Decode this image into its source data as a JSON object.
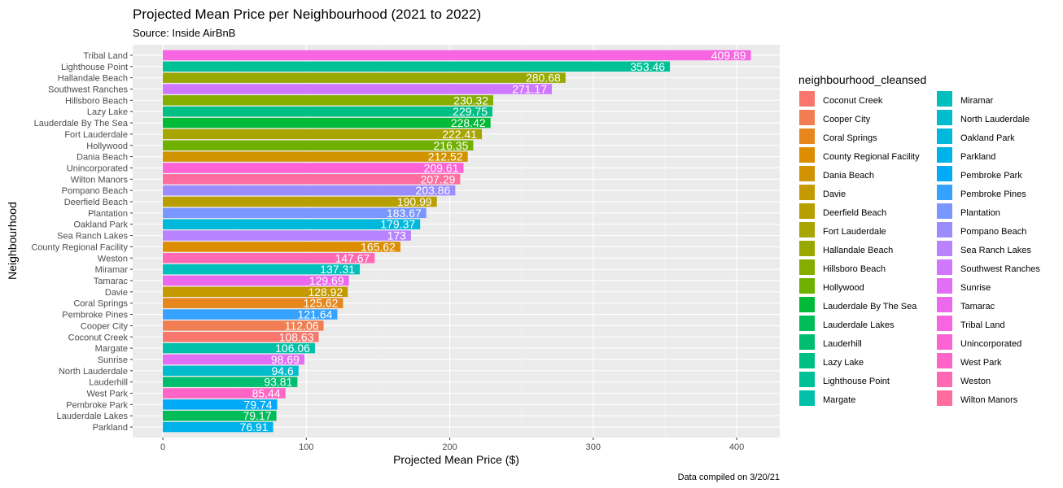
{
  "chart_data": {
    "type": "bar",
    "orientation": "horizontal",
    "title": "Projected Mean Price per Neighbourhood (2021 to 2022)",
    "subtitle": "Source: Inside AirBnB",
    "caption": "Data compiled on 3/20/21",
    "xlabel": "Projected Mean Price ($)",
    "ylabel": "Neighbourhood",
    "xlim": [
      -21,
      430
    ],
    "xticks": [
      0,
      100,
      200,
      300,
      400
    ],
    "grid": true,
    "legend_title": "neighbourhood_cleansed",
    "legend_position": "right",
    "bars": [
      {
        "name": "Tribal Land",
        "value": 409.89,
        "label": "409.89"
      },
      {
        "name": "Lighthouse Point",
        "value": 353.46,
        "label": "353.46"
      },
      {
        "name": "Hallandale Beach",
        "value": 280.68,
        "label": "280.68"
      },
      {
        "name": "Southwest Ranches",
        "value": 271.17,
        "label": "271.17"
      },
      {
        "name": "Hillsboro Beach",
        "value": 230.32,
        "label": "230.32"
      },
      {
        "name": "Lazy Lake",
        "value": 229.75,
        "label": "229.75"
      },
      {
        "name": "Lauderdale By The Sea",
        "value": 228.42,
        "label": "228.42"
      },
      {
        "name": "Fort Lauderdale",
        "value": 222.41,
        "label": "222.41"
      },
      {
        "name": "Hollywood",
        "value": 216.35,
        "label": "216.35"
      },
      {
        "name": "Dania Beach",
        "value": 212.52,
        "label": "212.52"
      },
      {
        "name": "Unincorporated",
        "value": 209.61,
        "label": "209.61"
      },
      {
        "name": "Wilton Manors",
        "value": 207.29,
        "label": "207.29"
      },
      {
        "name": "Pompano Beach",
        "value": 203.86,
        "label": "203.86"
      },
      {
        "name": "Deerfield Beach",
        "value": 190.99,
        "label": "190.99"
      },
      {
        "name": "Plantation",
        "value": 183.67,
        "label": "183.67"
      },
      {
        "name": "Oakland Park",
        "value": 179.37,
        "label": "179.37"
      },
      {
        "name": "Sea Ranch Lakes",
        "value": 173,
        "label": "173"
      },
      {
        "name": "County Regional Facility",
        "value": 165.62,
        "label": "165.62"
      },
      {
        "name": "Weston",
        "value": 147.67,
        "label": "147.67"
      },
      {
        "name": "Miramar",
        "value": 137.31,
        "label": "137.31"
      },
      {
        "name": "Tamarac",
        "value": 129.69,
        "label": "129.69"
      },
      {
        "name": "Davie",
        "value": 128.92,
        "label": "128.92"
      },
      {
        "name": "Coral Springs",
        "value": 125.62,
        "label": "125.62"
      },
      {
        "name": "Pembroke Pines",
        "value": 121.64,
        "label": "121.64"
      },
      {
        "name": "Cooper City",
        "value": 112.06,
        "label": "112.06"
      },
      {
        "name": "Coconut Creek",
        "value": 108.63,
        "label": "108.63"
      },
      {
        "name": "Margate",
        "value": 106.06,
        "label": "106.06"
      },
      {
        "name": "Sunrise",
        "value": 98.69,
        "label": "98.69"
      },
      {
        "name": "North Lauderdale",
        "value": 94.6,
        "label": "94.6"
      },
      {
        "name": "Lauderhill",
        "value": 93.81,
        "label": "93.81"
      },
      {
        "name": "West Park",
        "value": 85.44,
        "label": "85.44"
      },
      {
        "name": "Pembroke Park",
        "value": 79.74,
        "label": "79.74"
      },
      {
        "name": "Lauderdale Lakes",
        "value": 79.17,
        "label": "79.17"
      },
      {
        "name": "Parkland",
        "value": 76.91,
        "label": "76.91"
      }
    ],
    "legend": [
      {
        "name": "Coconut Creek",
        "color": "#F8766D"
      },
      {
        "name": "Cooper City",
        "color": "#F07E52"
      },
      {
        "name": "Coral Springs",
        "color": "#E7861B"
      },
      {
        "name": "County Regional Facility",
        "color": "#DD8D00"
      },
      {
        "name": "Dania Beach",
        "color": "#D19300"
      },
      {
        "name": "Davie",
        "color": "#C49A00"
      },
      {
        "name": "Deerfield Beach",
        "color": "#B79F00"
      },
      {
        "name": "Fort Lauderdale",
        "color": "#A8A400"
      },
      {
        "name": "Hallandale Beach",
        "color": "#98A800"
      },
      {
        "name": "Hillsboro Beach",
        "color": "#85AD00"
      },
      {
        "name": "Hollywood",
        "color": "#6FB000"
      },
      {
        "name": "Lauderdale By The Sea",
        "color": "#00BA38"
      },
      {
        "name": "Lauderdale Lakes",
        "color": "#00BC59"
      },
      {
        "name": "Lauderhill",
        "color": "#00BE70"
      },
      {
        "name": "Lazy Lake",
        "color": "#00BF84"
      },
      {
        "name": "Lighthouse Point",
        "color": "#00C097"
      },
      {
        "name": "Margate",
        "color": "#00C0AA"
      },
      {
        "name": "Miramar",
        "color": "#00BFBC"
      },
      {
        "name": "North Lauderdale",
        "color": "#00BCCC"
      },
      {
        "name": "Oakland Park",
        "color": "#00B8DC"
      },
      {
        "name": "Parkland",
        "color": "#00B2EA"
      },
      {
        "name": "Pembroke Park",
        "color": "#00AAF6"
      },
      {
        "name": "Pembroke Pines",
        "color": "#35A2FF"
      },
      {
        "name": "Plantation",
        "color": "#7997FF"
      },
      {
        "name": "Pompano Beach",
        "color": "#9C8DFF"
      },
      {
        "name": "Sea Ranch Lakes",
        "color": "#B983FF"
      },
      {
        "name": "Southwest Ranches",
        "color": "#CF78FF"
      },
      {
        "name": "Sunrise",
        "color": "#E06FF5"
      },
      {
        "name": "Tamarac",
        "color": "#EC69EE"
      },
      {
        "name": "Tribal Land",
        "color": "#F765E3"
      },
      {
        "name": "Unincorporated",
        "color": "#FE63D6"
      },
      {
        "name": "West Park",
        "color": "#FF65C6"
      },
      {
        "name": "Weston",
        "color": "#FF69B4"
      },
      {
        "name": "Wilton Manors",
        "color": "#FF6C9F"
      }
    ],
    "colors": {
      "panel_background": "#EBEBEB",
      "grid_major": "#FFFFFF",
      "grid_minor": "#F2F2F2",
      "axis_text": "#4D4D4D",
      "bar_label": "#FFFFFF"
    }
  }
}
